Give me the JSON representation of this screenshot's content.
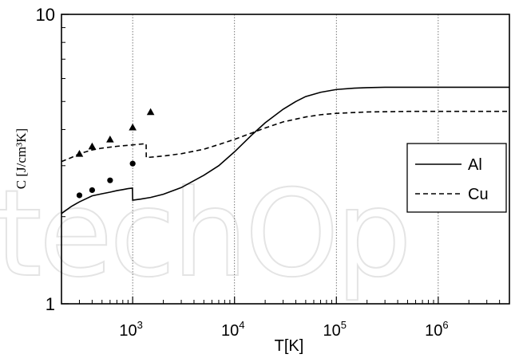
{
  "chart_data": {
    "type": "line",
    "title": "",
    "xlabel": "T[K]",
    "ylabel": "C [J/cm³K]",
    "xscale": "log",
    "yscale": "log",
    "xlim": [
      200,
      5000000
    ],
    "ylim": [
      1,
      10
    ],
    "x_ticks": [
      {
        "base": "10",
        "exp": "3",
        "value": 1000
      },
      {
        "base": "10",
        "exp": "4",
        "value": 10000
      },
      {
        "base": "10",
        "exp": "5",
        "value": 100000
      },
      {
        "base": "10",
        "exp": "6",
        "value": 1000000
      }
    ],
    "y_ticks": [
      {
        "label": "1",
        "value": 1
      },
      {
        "label": "10",
        "value": 10
      }
    ],
    "grid": "vertical dotted at 1e3, 1e4, 1e5, 1e6",
    "legend_position": "right",
    "series": [
      {
        "name": "Al",
        "style": "solid",
        "x": [
          200,
          250,
          300,
          400,
          500,
          600,
          700,
          800,
          900,
          995,
          1000,
          1200,
          1500,
          2000,
          3000,
          5000,
          7000,
          10000,
          15000,
          20000,
          30000,
          40000,
          50000,
          70000,
          100000,
          150000,
          200000,
          300000,
          500000,
          1000000,
          2000000,
          5000000
        ],
        "y": [
          2.05,
          2.17,
          2.25,
          2.36,
          2.4,
          2.43,
          2.46,
          2.48,
          2.5,
          2.51,
          2.28,
          2.3,
          2.33,
          2.39,
          2.52,
          2.78,
          3.0,
          3.35,
          3.85,
          4.22,
          4.7,
          5.0,
          5.2,
          5.38,
          5.5,
          5.56,
          5.58,
          5.6,
          5.6,
          5.6,
          5.6,
          5.6
        ]
      },
      {
        "name": "Cu",
        "style": "dashed",
        "x": [
          200,
          250,
          300,
          400,
          500,
          700,
          1000,
          1300,
          1356,
          1360,
          1500,
          2000,
          3000,
          5000,
          7000,
          10000,
          15000,
          20000,
          30000,
          50000,
          70000,
          100000,
          200000,
          500000,
          1000000,
          5000000
        ],
        "y": [
          3.1,
          3.2,
          3.3,
          3.4,
          3.45,
          3.5,
          3.54,
          3.57,
          3.57,
          3.2,
          3.21,
          3.24,
          3.3,
          3.42,
          3.55,
          3.7,
          3.9,
          4.05,
          4.25,
          4.42,
          4.5,
          4.55,
          4.6,
          4.62,
          4.62,
          4.62
        ]
      },
      {
        "name": "",
        "style": "markers-circle",
        "x": [
          300,
          400,
          600,
          1000
        ],
        "y": [
          2.37,
          2.47,
          2.67,
          3.05
        ]
      },
      {
        "name": "",
        "style": "markers-triangle",
        "x": [
          300,
          400,
          600,
          1000,
          1500
        ],
        "y": [
          3.3,
          3.5,
          3.7,
          4.07,
          4.6
        ]
      }
    ],
    "legend": [
      {
        "label": "Al",
        "style": "solid"
      },
      {
        "label": "Cu",
        "style": "dashed"
      }
    ]
  }
}
